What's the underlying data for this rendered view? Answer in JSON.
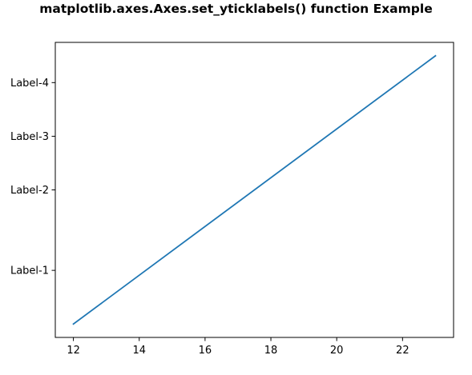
{
  "chart_data": {
    "type": "line",
    "title": "matplotlib.axes.Axes.set_yticklabels() function Example",
    "xlabel": "",
    "ylabel": "",
    "x": [
      12,
      23
    ],
    "series": [
      {
        "values": [
          0,
          1
        ],
        "color": "#1f77b4"
      }
    ],
    "xlim": [
      11.45,
      23.55
    ],
    "ylim": [
      -0.05,
      1.05
    ],
    "xticks": [
      12,
      14,
      16,
      18,
      20,
      22
    ],
    "xtick_labels": [
      "12",
      "14",
      "16",
      "18",
      "20",
      "22"
    ],
    "yticks": [
      0.2,
      0.5,
      0.7,
      0.9
    ],
    "ytick_labels": [
      "Label-1",
      "Label-2",
      "Label-3",
      "Label-4"
    ],
    "grid": false,
    "legend": "none"
  }
}
